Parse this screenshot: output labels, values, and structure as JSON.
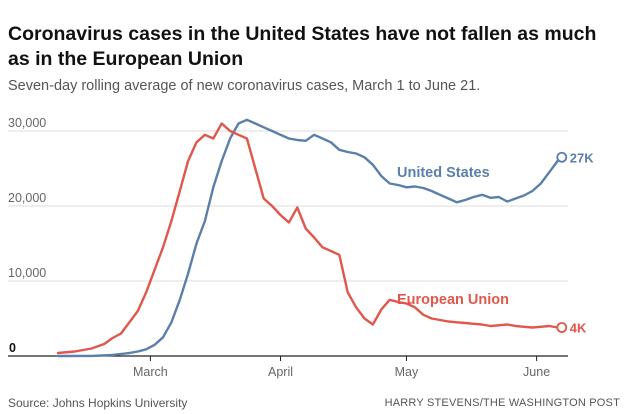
{
  "header": {
    "title": "Coronavirus cases in the United States have not fallen as much as in the European Union",
    "subtitle": "Seven-day rolling average of new coronavirus cases, March 1 to June 21."
  },
  "footer": {
    "source": "Source: Johns Hopkins University",
    "credit": "HARRY STEVENS/THE WASHINGTON POST"
  },
  "chart_data": {
    "type": "line",
    "title": "Coronavirus cases in the United States have not fallen as much as in the European Union",
    "subtitle": "Seven-day rolling average of new coronavirus cases, March 1 to June 21.",
    "x_range": [
      "2020-02-22",
      "2020-06-22"
    ],
    "ylim": [
      0,
      30000
    ],
    "y_ticks": [
      {
        "value": 0,
        "label": "0"
      },
      {
        "value": 10000,
        "label": "10,000"
      },
      {
        "value": 20000,
        "label": "20,000"
      },
      {
        "value": 30000,
        "label": "30,000"
      }
    ],
    "x_ticks": [
      {
        "date": "2020-03-15",
        "label": "March"
      },
      {
        "date": "2020-04-15",
        "label": "April"
      },
      {
        "date": "2020-05-15",
        "label": "May"
      },
      {
        "date": "2020-06-15",
        "label": "June"
      }
    ],
    "grid": "horizontal",
    "series": [
      {
        "name": "United States",
        "color": "#5b7fab",
        "end_label": "27K",
        "x": [
          "2020-02-22",
          "2020-03-01",
          "2020-03-06",
          "2020-03-10",
          "2020-03-12",
          "2020-03-14",
          "2020-03-16",
          "2020-03-18",
          "2020-03-20",
          "2020-03-22",
          "2020-03-24",
          "2020-03-26",
          "2020-03-28",
          "2020-03-30",
          "2020-04-01",
          "2020-04-03",
          "2020-04-05",
          "2020-04-07",
          "2020-04-09",
          "2020-04-11",
          "2020-04-13",
          "2020-04-15",
          "2020-04-17",
          "2020-04-19",
          "2020-04-21",
          "2020-04-23",
          "2020-04-25",
          "2020-04-27",
          "2020-04-29",
          "2020-05-01",
          "2020-05-03",
          "2020-05-05",
          "2020-05-07",
          "2020-05-09",
          "2020-05-11",
          "2020-05-13",
          "2020-05-15",
          "2020-05-17",
          "2020-05-19",
          "2020-05-21",
          "2020-05-23",
          "2020-05-25",
          "2020-05-27",
          "2020-05-29",
          "2020-05-31",
          "2020-06-02",
          "2020-06-04",
          "2020-06-06",
          "2020-06-08",
          "2020-06-10",
          "2020-06-12",
          "2020-06-14",
          "2020-06-16",
          "2020-06-18",
          "2020-06-20",
          "2020-06-21"
        ],
        "values": [
          0,
          20,
          150,
          400,
          600,
          900,
          1500,
          2500,
          4500,
          7500,
          11000,
          15000,
          18000,
          22500,
          26000,
          29000,
          31000,
          31500,
          31000,
          30500,
          30000,
          29500,
          29000,
          28800,
          28700,
          29500,
          29000,
          28500,
          27500,
          27200,
          27000,
          26500,
          25500,
          24000,
          23000,
          22800,
          22500,
          22600,
          22400,
          22000,
          21500,
          21000,
          20500,
          20800,
          21200,
          21500,
          21100,
          21200,
          20600,
          21000,
          21400,
          22000,
          23000,
          24500,
          26000,
          26500
        ]
      },
      {
        "name": "European Union",
        "color": "#e0574c",
        "end_label": "4K",
        "x": [
          "2020-02-22",
          "2020-02-26",
          "2020-03-01",
          "2020-03-04",
          "2020-03-06",
          "2020-03-08",
          "2020-03-10",
          "2020-03-12",
          "2020-03-14",
          "2020-03-16",
          "2020-03-18",
          "2020-03-20",
          "2020-03-22",
          "2020-03-24",
          "2020-03-26",
          "2020-03-28",
          "2020-03-30",
          "2020-04-01",
          "2020-04-03",
          "2020-04-05",
          "2020-04-07",
          "2020-04-09",
          "2020-04-11",
          "2020-04-13",
          "2020-04-15",
          "2020-04-17",
          "2020-04-19",
          "2020-04-21",
          "2020-04-23",
          "2020-04-25",
          "2020-04-27",
          "2020-04-29",
          "2020-05-01",
          "2020-05-03",
          "2020-05-05",
          "2020-05-07",
          "2020-05-09",
          "2020-05-11",
          "2020-05-13",
          "2020-05-15",
          "2020-05-17",
          "2020-05-19",
          "2020-05-21",
          "2020-05-23",
          "2020-05-25",
          "2020-05-27",
          "2020-05-29",
          "2020-05-31",
          "2020-06-02",
          "2020-06-04",
          "2020-06-06",
          "2020-06-08",
          "2020-06-10",
          "2020-06-12",
          "2020-06-14",
          "2020-06-16",
          "2020-06-18",
          "2020-06-20",
          "2020-06-21"
        ],
        "values": [
          400,
          600,
          1000,
          1600,
          2400,
          3000,
          4500,
          6000,
          8500,
          11500,
          14500,
          18000,
          22000,
          26000,
          28500,
          29500,
          29000,
          31000,
          30000,
          29500,
          29000,
          25000,
          21000,
          20000,
          18800,
          17800,
          19800,
          17000,
          15800,
          14500,
          14000,
          13500,
          8500,
          6500,
          5000,
          4200,
          6200,
          7500,
          7200,
          7000,
          6500,
          5500,
          5000,
          4800,
          4600,
          4500,
          4400,
          4300,
          4200,
          4000,
          4100,
          4200,
          4000,
          3900,
          3800,
          3900,
          4000,
          3800,
          3800
        ]
      }
    ]
  }
}
